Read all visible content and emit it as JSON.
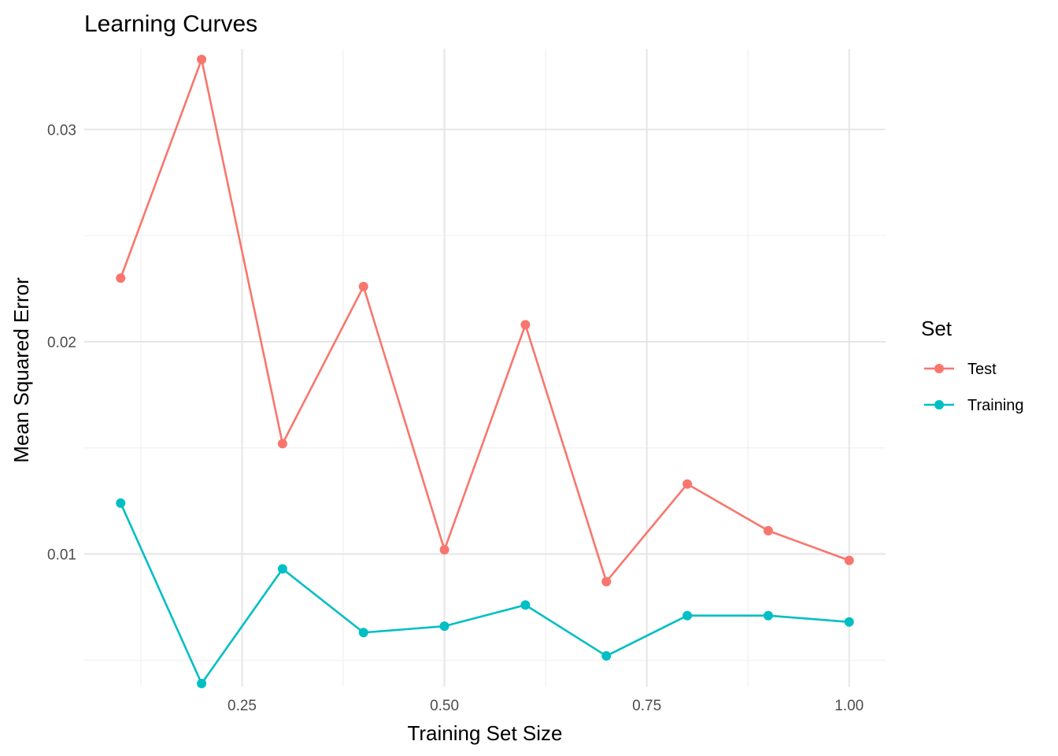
{
  "chart_data": {
    "type": "line",
    "title": "Learning Curves",
    "xlabel": "Training Set Size",
    "ylabel": "Mean Squared Error",
    "xlim": [
      0.055,
      1.045
    ],
    "ylim": [
      0.00375,
      0.0338
    ],
    "x_ticks": [
      0.25,
      0.5,
      0.75,
      1.0
    ],
    "x_tick_labels": [
      "0.25",
      "0.50",
      "0.75",
      "1.00"
    ],
    "y_ticks": [
      0.01,
      0.02,
      0.03
    ],
    "y_tick_labels": [
      "0.01",
      "0.02",
      "0.03"
    ],
    "grid": true,
    "legend": {
      "title": "Set",
      "position": "right"
    },
    "x": [
      0.1,
      0.2,
      0.3,
      0.4,
      0.5,
      0.6,
      0.7,
      0.8,
      0.9,
      1.0
    ],
    "series": [
      {
        "name": "Test",
        "color": "#F8766D",
        "values": [
          0.023,
          0.0333,
          0.0152,
          0.0226,
          0.0102,
          0.0208,
          0.0087,
          0.0133,
          0.0111,
          0.0097
        ]
      },
      {
        "name": "Training",
        "color": "#00BFC4",
        "values": [
          0.0124,
          0.0039,
          0.0093,
          0.0063,
          0.0066,
          0.0076,
          0.0052,
          0.0071,
          0.0071,
          0.0068
        ]
      }
    ]
  }
}
